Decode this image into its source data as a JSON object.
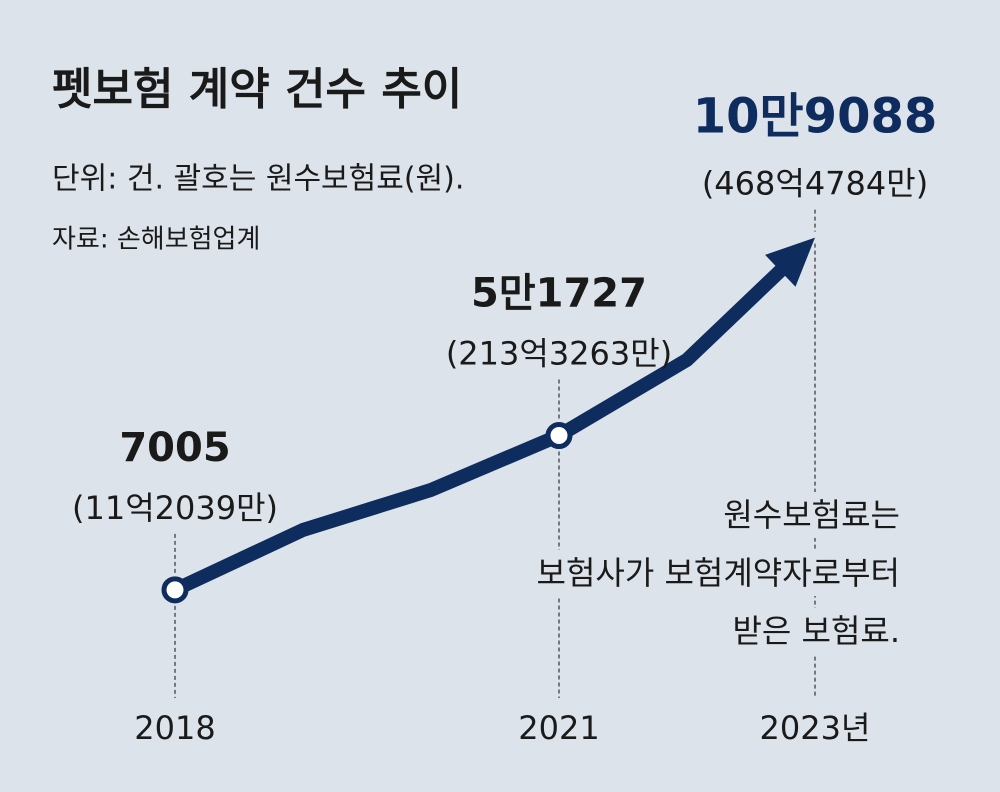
{
  "chart_data": {
    "type": "line",
    "title": "펫보험 계약 건수 추이",
    "subtitle": "단위: 건. 괄호는 원수보험료(원).",
    "source": "자료: 손해보험업계",
    "categories": [
      "2018",
      null,
      null,
      "2021",
      null,
      "2023년"
    ],
    "values": [
      7005,
      24360,
      35960,
      51727,
      73660,
      109088
    ],
    "value_labels": [
      "7005",
      null,
      null,
      "5만1727",
      null,
      "10만9088"
    ],
    "premium_labels": [
      "(11억2039만)",
      null,
      null,
      "(213억3263만)",
      null,
      "(468억4784만)"
    ],
    "annotation": [
      "원수보험료는",
      "보험사가 보험계약자로부터",
      "받은 보험료."
    ],
    "ylim": [
      0,
      120000
    ],
    "color": "#0f2c5e"
  }
}
